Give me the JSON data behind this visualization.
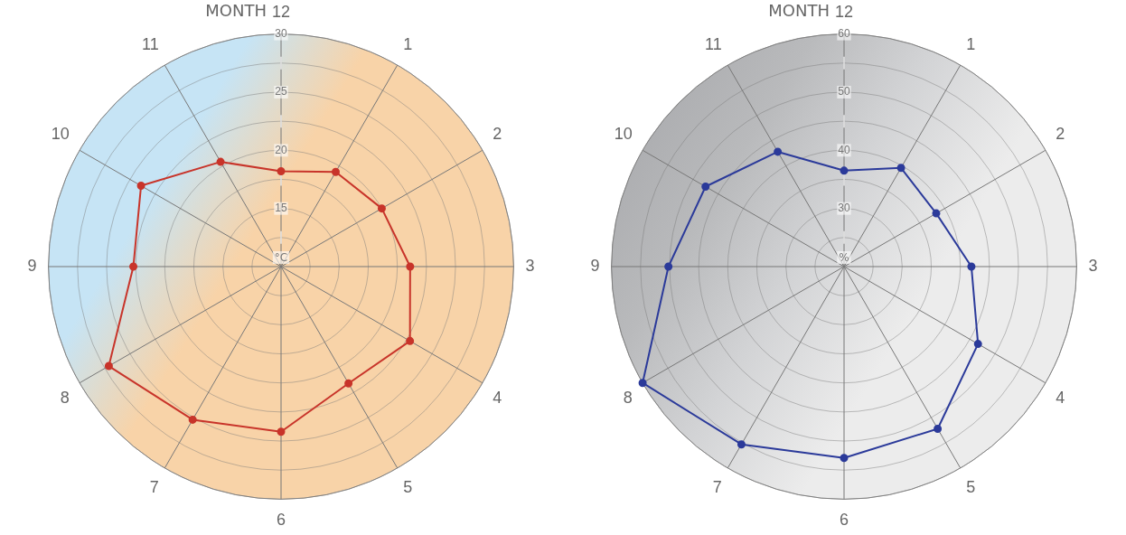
{
  "chart_data": [
    {
      "type": "radar",
      "xlabel": "MONTH",
      "categories": [
        "12",
        "1",
        "2",
        "3",
        "4",
        "5",
        "6",
        "7",
        "8",
        "9",
        "10",
        "11"
      ],
      "series": [
        {
          "color": "#c8342a",
          "values": [
            18.2,
            19.4,
            20.0,
            21.1,
            22.8,
            21.6,
            24.2,
            25.2,
            27.1,
            22.7,
            23.9,
            20.4
          ]
        }
      ],
      "ylim": [
        10,
        30
      ],
      "yticks": [
        {
          "value": 10,
          "label": "°C"
        },
        15,
        20,
        25,
        30
      ],
      "marker": "circle",
      "grid": true
    },
    {
      "type": "radar",
      "xlabel": "MONTH",
      "categories": [
        "12",
        "1",
        "2",
        "3",
        "4",
        "5",
        "6",
        "7",
        "8",
        "9",
        "10",
        "11"
      ],
      "series": [
        {
          "color": "#2b3a9a",
          "values": [
            36.5,
            39.6,
            38.3,
            41.9,
            46.6,
            52.2,
            52.9,
            55.3,
            60,
            50.2,
            47.5,
            42.8
          ]
        }
      ],
      "ylim": [
        20,
        60
      ],
      "yticks": [
        {
          "value": 20,
          "label": "%"
        },
        30,
        40,
        50,
        60
      ],
      "marker": "circle",
      "grid": true
    }
  ]
}
